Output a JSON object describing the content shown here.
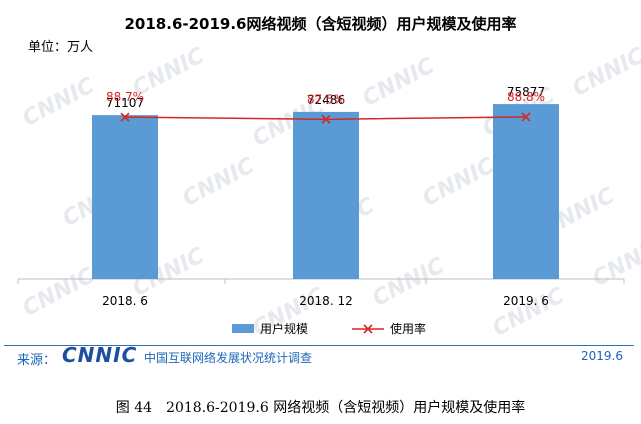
{
  "title": "2018.6-2019.6网络视频（含短视频）用户规模及使用率",
  "unit_label": "单位：万人",
  "watermark_text": "CNNIC",
  "footer": {
    "source_label": "来源：",
    "logo": "CNNIC",
    "org": "中国互联网络发展状况统计调查",
    "date": "2019.6"
  },
  "caption": "图 44　2018.6-2019.6 网络视频（含短视频）用户规模及使用率",
  "colors": {
    "bar": "#5b9bd5",
    "line": "#d62728",
    "footer": "#1b66b8"
  },
  "chart_data": {
    "type": "bar",
    "title": "2018.6-2019.6网络视频（含短视频）用户规模及使用率",
    "categories": [
      "2018. 6",
      "2018. 12",
      "2019. 6"
    ],
    "series": [
      {
        "name": "用户规模",
        "type": "bar",
        "values": [
          71107,
          72486,
          75877
        ],
        "labels": [
          "71107",
          "72486",
          "75877"
        ]
      },
      {
        "name": "使用率",
        "type": "line",
        "values": [
          88.7,
          87.5,
          88.8
        ],
        "labels": [
          "88.7%",
          "87.5%",
          "88.8%"
        ]
      }
    ],
    "ylim": [
      0,
      95000
    ],
    "y2lim": [
      0,
      120
    ],
    "grid": false,
    "legend_position": "bottom"
  }
}
